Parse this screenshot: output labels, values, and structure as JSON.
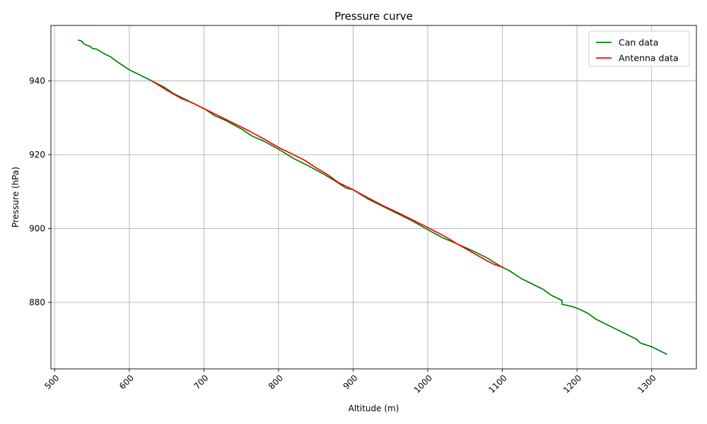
{
  "chart_data": {
    "type": "line",
    "title": "Pressure curve",
    "xlabel": "Altitude (m)",
    "ylabel": "Pressure (hPa)",
    "xlim": [
      495,
      1360
    ],
    "ylim": [
      862,
      955
    ],
    "xticks": [
      500,
      600,
      700,
      800,
      900,
      1000,
      1100,
      1200,
      1300
    ],
    "yticks": [
      880,
      900,
      920,
      940
    ],
    "grid": true,
    "legend_position": "top-right",
    "series": [
      {
        "name": "Can data",
        "color": "#008000",
        "points": [
          [
            532,
            951
          ],
          [
            536,
            950.8
          ],
          [
            539,
            950
          ],
          [
            545,
            949.5
          ],
          [
            548,
            949.3
          ],
          [
            550,
            948.8
          ],
          [
            556,
            948.6
          ],
          [
            565,
            947.5
          ],
          [
            575,
            946.5
          ],
          [
            585,
            945
          ],
          [
            600,
            943
          ],
          [
            615,
            941.5
          ],
          [
            630,
            940
          ],
          [
            645,
            938.5
          ],
          [
            660,
            936.5
          ],
          [
            680,
            934.5
          ],
          [
            700,
            932.5
          ],
          [
            715,
            930.5
          ],
          [
            730,
            929.2
          ],
          [
            750,
            927
          ],
          [
            765,
            925
          ],
          [
            780,
            923.7
          ],
          [
            800,
            921.5
          ],
          [
            820,
            919
          ],
          [
            840,
            917
          ],
          [
            860,
            914.8
          ],
          [
            875,
            913
          ],
          [
            890,
            911
          ],
          [
            900,
            910.5
          ],
          [
            920,
            908
          ],
          [
            940,
            906
          ],
          [
            960,
            904
          ],
          [
            980,
            902
          ],
          [
            1000,
            899.7
          ],
          [
            1020,
            897.5
          ],
          [
            1040,
            895.8
          ],
          [
            1060,
            894
          ],
          [
            1080,
            892
          ],
          [
            1100,
            889.5
          ],
          [
            1110,
            888.5
          ],
          [
            1125,
            886.5
          ],
          [
            1140,
            885
          ],
          [
            1155,
            883.5
          ],
          [
            1165,
            882
          ],
          [
            1180,
            880.5
          ],
          [
            1180,
            879.5
          ],
          [
            1195,
            878.8
          ],
          [
            1205,
            878
          ],
          [
            1215,
            877
          ],
          [
            1225,
            875.5
          ],
          [
            1240,
            874
          ],
          [
            1255,
            872.5
          ],
          [
            1270,
            871
          ],
          [
            1280,
            870
          ],
          [
            1285,
            869
          ],
          [
            1300,
            868
          ],
          [
            1320,
            866
          ]
        ]
      },
      {
        "name": "Antenna data",
        "color": "#ff0000",
        "points": [
          [
            630,
            940
          ],
          [
            650,
            937.5
          ],
          [
            670,
            935.2
          ],
          [
            685,
            934
          ],
          [
            700,
            932.5
          ],
          [
            720,
            930.5
          ],
          [
            740,
            928.5
          ],
          [
            760,
            926.5
          ],
          [
            780,
            924.3
          ],
          [
            800,
            922
          ],
          [
            820,
            920
          ],
          [
            835,
            918.5
          ],
          [
            850,
            916.5
          ],
          [
            865,
            914.7
          ],
          [
            880,
            912.5
          ],
          [
            900,
            910.5
          ],
          [
            920,
            908.3
          ],
          [
            940,
            906.2
          ],
          [
            960,
            904.3
          ],
          [
            980,
            902.3
          ],
          [
            1000,
            900.3
          ],
          [
            1020,
            898.2
          ],
          [
            1040,
            895.8
          ],
          [
            1060,
            893.5
          ],
          [
            1080,
            891.2
          ],
          [
            1090,
            890.2
          ],
          [
            1100,
            889.6
          ]
        ]
      }
    ]
  }
}
